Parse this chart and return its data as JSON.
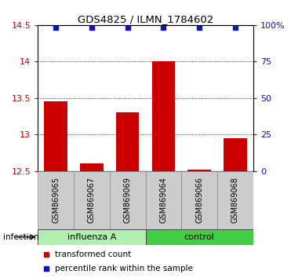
{
  "title": "GDS4825 / ILMN_1784602",
  "categories": [
    "GSM869065",
    "GSM869067",
    "GSM869069",
    "GSM869064",
    "GSM869066",
    "GSM869068"
  ],
  "bar_values": [
    13.45,
    12.6,
    13.3,
    14.0,
    12.52,
    12.95
  ],
  "ylim_left": [
    12.5,
    14.5
  ],
  "ylim_right": [
    0,
    100
  ],
  "yticks_left": [
    12.5,
    13.0,
    13.5,
    14.0,
    14.5
  ],
  "ytick_labels_left": [
    "12.5",
    "13",
    "13.5",
    "14",
    "14.5"
  ],
  "yticks_right": [
    0,
    25,
    50,
    75,
    100
  ],
  "ytick_labels_right": [
    "0",
    "25",
    "50",
    "75",
    "100%"
  ],
  "bar_color": "#cc0000",
  "dot_color": "#1111cc",
  "label_color_left": "#cc0000",
  "label_color_right": "#1111cc",
  "bar_bottom": 12.5,
  "influenza_color_light": "#b2f0b2",
  "influenza_color": "#66dd66",
  "control_color": "#44cc44",
  "gray_box_color": "#cccccc",
  "gray_box_edge": "#888888",
  "legend_items": [
    {
      "color": "#cc0000",
      "label": "transformed count"
    },
    {
      "color": "#1111cc",
      "label": "percentile rank within the sample"
    }
  ],
  "influenza_indices": [
    0,
    1,
    2
  ],
  "control_indices": [
    3,
    4,
    5
  ]
}
